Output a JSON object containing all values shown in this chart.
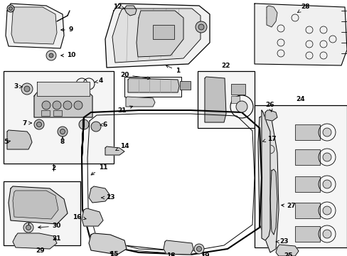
{
  "bg_color": "#ffffff",
  "line_color": "#000000",
  "gray_light": "#e8e8e8",
  "gray_mid": "#cccccc",
  "gray_dark": "#aaaaaa",
  "fs": 6.5,
  "fw": "bold"
}
